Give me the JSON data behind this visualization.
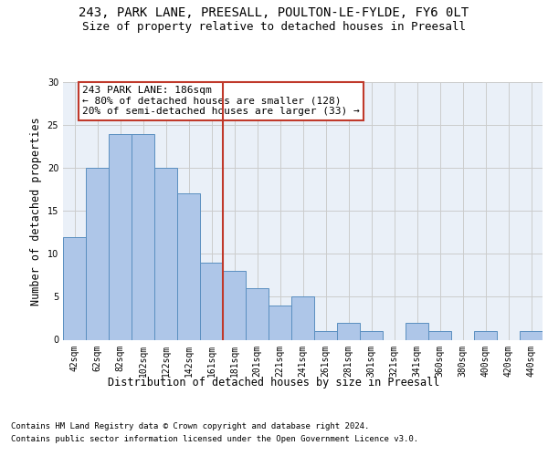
{
  "title_line1": "243, PARK LANE, PREESALL, POULTON-LE-FYLDE, FY6 0LT",
  "title_line2": "Size of property relative to detached houses in Preesall",
  "xlabel": "Distribution of detached houses by size in Preesall",
  "ylabel": "Number of detached properties",
  "categories": [
    "42sqm",
    "62sqm",
    "82sqm",
    "102sqm",
    "122sqm",
    "142sqm",
    "161sqm",
    "181sqm",
    "201sqm",
    "221sqm",
    "241sqm",
    "261sqm",
    "281sqm",
    "301sqm",
    "321sqm",
    "341sqm",
    "360sqm",
    "380sqm",
    "400sqm",
    "420sqm",
    "440sqm"
  ],
  "values": [
    12,
    20,
    24,
    24,
    20,
    17,
    9,
    8,
    6,
    4,
    5,
    1,
    2,
    1,
    0,
    2,
    1,
    0,
    1,
    0,
    1
  ],
  "bar_color": "#aec6e8",
  "bar_edge_color": "#5a8fc0",
  "vline_color": "#c0392b",
  "annotation_text": "243 PARK LANE: 186sqm\n← 80% of detached houses are smaller (128)\n20% of semi-detached houses are larger (33) →",
  "annotation_box_color": "white",
  "annotation_box_edge_color": "#c0392b",
  "ylim": [
    0,
    30
  ],
  "yticks": [
    0,
    5,
    10,
    15,
    20,
    25,
    30
  ],
  "grid_color": "#cccccc",
  "bg_color": "#eaf0f8",
  "footer_line1": "Contains HM Land Registry data © Crown copyright and database right 2024.",
  "footer_line2": "Contains public sector information licensed under the Open Government Licence v3.0.",
  "title_fontsize": 10,
  "subtitle_fontsize": 9,
  "axis_label_fontsize": 8.5,
  "tick_fontsize": 7,
  "annotation_fontsize": 8,
  "footer_fontsize": 6.5
}
